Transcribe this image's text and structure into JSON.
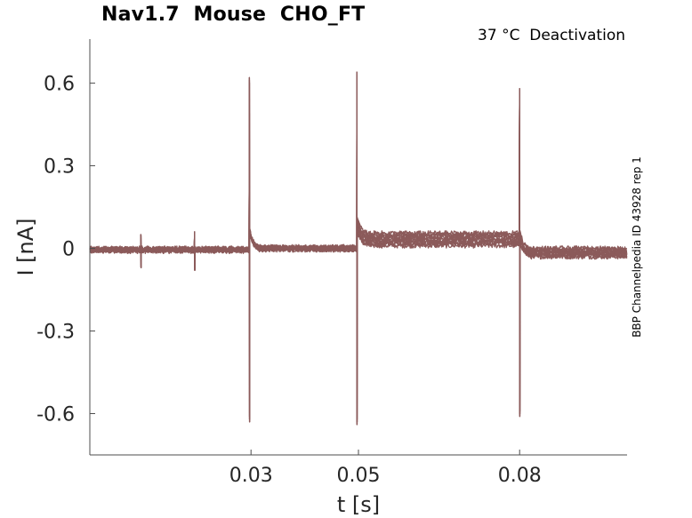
{
  "chart_data": {
    "type": "line",
    "title": "Nav1.7  Mouse  CHO_FT",
    "subtitle": "37 °C  Deactivation",
    "side_label": "BBP Channelpedia ID 43928 rep 1",
    "xlabel": "t [s]",
    "ylabel": "I [nA]",
    "xlim": [
      0.0,
      0.1
    ],
    "ylim": [
      -0.75,
      0.76
    ],
    "xticks": [
      0.03,
      0.05,
      0.08
    ],
    "xtick_labels": [
      "0.03",
      "0.05",
      "0.08"
    ],
    "yticks": [
      0.6,
      0.3,
      0,
      -0.3,
      -0.6
    ],
    "ytick_labels": [
      "0.6",
      "0.3",
      "0",
      "-0.3",
      "-0.6"
    ],
    "grid": false,
    "line_color": "#8b5a5a",
    "series_count": 10,
    "events": [
      {
        "t": 0.0095,
        "peak": 0.05,
        "trough": -0.07
      },
      {
        "t": 0.0195,
        "peak": 0.06,
        "trough": -0.08
      },
      {
        "t": 0.0297,
        "peak": 0.62,
        "trough": -0.63
      },
      {
        "t": 0.0497,
        "peak": 0.64,
        "trough": -0.64
      },
      {
        "t": 0.08,
        "peak": 0.58,
        "trough": -0.61
      }
    ],
    "segments": [
      {
        "t_start": 0.0,
        "t_end": 0.0297,
        "level_min": -0.01,
        "level_max": 0.0
      },
      {
        "t_start": 0.0297,
        "t_end": 0.0497,
        "level_min": -0.005,
        "level_max": 0.005
      },
      {
        "t_start": 0.0497,
        "t_end": 0.08,
        "level_min": 0.01,
        "level_max": 0.055
      },
      {
        "t_start": 0.08,
        "t_end": 0.1,
        "level_min": -0.03,
        "level_max": 0.0
      }
    ]
  }
}
